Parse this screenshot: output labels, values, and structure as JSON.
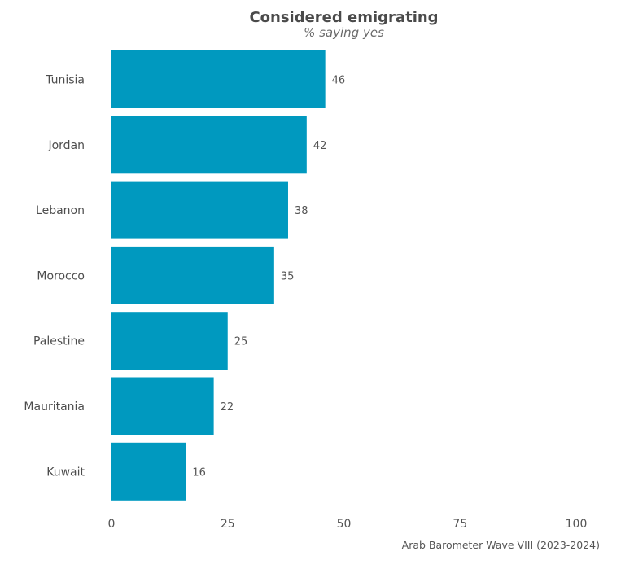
{
  "chart_data": {
    "type": "bar",
    "orientation": "horizontal",
    "title": "Considered emigrating",
    "subtitle": "% saying yes",
    "categories": [
      "Tunisia",
      "Jordan",
      "Lebanon",
      "Morocco",
      "Palestine",
      "Mauritania",
      "Kuwait"
    ],
    "values": [
      46,
      42,
      38,
      35,
      25,
      22,
      16
    ],
    "xlim": [
      0,
      100
    ],
    "xticks": [
      0,
      25,
      50,
      75,
      100
    ],
    "grid": false,
    "bar_color": "#0099bf",
    "source": "Arab Barometer Wave VIII (2023-2024)"
  }
}
